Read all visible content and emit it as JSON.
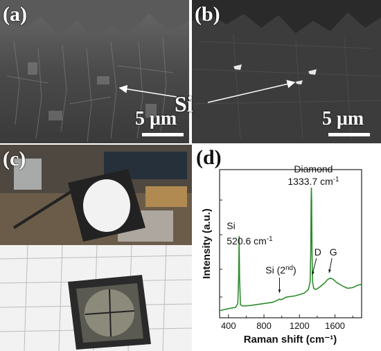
{
  "panels": {
    "a": {
      "label": "(a)",
      "scale": "5 μm"
    },
    "b": {
      "label": "(b)",
      "scale": "5 μm"
    },
    "c": {
      "label": "(c)"
    },
    "d": {
      "label": "(d)"
    }
  },
  "si_annotation": "Si",
  "chart_data": {
    "type": "line",
    "xlabel": "Raman shift (cm⁻¹)",
    "ylabel": "Intensity (a.u.)",
    "xlim": [
      300,
      1900
    ],
    "xticks": [
      400,
      800,
      1200,
      1600
    ],
    "ylim": [
      0,
      1
    ],
    "line_color": "#2e8b2e",
    "series": [
      {
        "x": [
          300,
          400,
          480,
          505,
          515,
          520,
          525,
          535,
          560,
          650,
          800,
          900,
          950,
          975,
          990,
          1010,
          1050,
          1150,
          1250,
          1300,
          1320,
          1327,
          1331,
          1334,
          1337,
          1341,
          1348,
          1360,
          1380,
          1420,
          1480,
          1520,
          1550,
          1580,
          1620,
          1680,
          1740,
          1800,
          1860,
          1900
        ],
        "y": [
          0.035,
          0.05,
          0.06,
          0.09,
          0.3,
          0.62,
          0.3,
          0.08,
          0.07,
          0.075,
          0.09,
          0.1,
          0.115,
          0.125,
          0.12,
          0.125,
          0.14,
          0.15,
          0.17,
          0.2,
          0.26,
          0.5,
          0.9,
          1.0,
          0.9,
          0.5,
          0.26,
          0.21,
          0.2,
          0.215,
          0.25,
          0.28,
          0.29,
          0.28,
          0.255,
          0.23,
          0.21,
          0.215,
          0.235,
          0.24
        ]
      }
    ],
    "annotations": [
      {
        "text": "Diamond",
        "x": 1333.7,
        "line2": "1333.7 cm",
        "sup": "-1"
      },
      {
        "text": "Si",
        "x": 520.6,
        "line2": "520.6 cm",
        "sup": "-1"
      },
      {
        "text": "Si (2",
        "sup": "nd",
        "tail": ")",
        "x": 975
      },
      {
        "text": "D",
        "x": 1360
      },
      {
        "text": "G",
        "x": 1550
      }
    ]
  }
}
